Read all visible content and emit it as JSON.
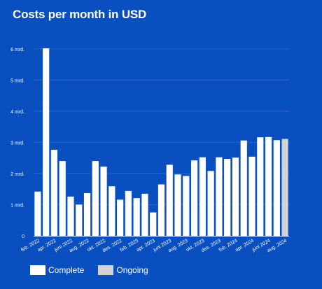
{
  "chart_data": {
    "type": "bar",
    "title": "Costs per month in USD",
    "xlabel": "",
    "ylabel": "",
    "ylim": [
      0,
      6400000000
    ],
    "yticks": [
      {
        "value": 0,
        "label": "0"
      },
      {
        "value": 1000000000,
        "label": "1 mrd."
      },
      {
        "value": 2000000000,
        "label": "2 mrd."
      },
      {
        "value": 3000000000,
        "label": "3 mrd."
      },
      {
        "value": 4000000000,
        "label": "4 mrd."
      },
      {
        "value": 5000000000,
        "label": "5 mrd."
      },
      {
        "value": 6000000000,
        "label": "6 mrd."
      }
    ],
    "grid": true,
    "categories": [
      "feb. 2022",
      "mar. 2022",
      "apr. 2022",
      "mai 2022",
      "juni 2022",
      "juli 2022",
      "aug. 2022",
      "sep. 2022",
      "okt. 2022",
      "nov. 2022",
      "des. 2022",
      "jan. 2023",
      "feb. 2023",
      "mar. 2023",
      "apr. 2023",
      "mai 2023",
      "juni 2023",
      "juli 2023",
      "aug. 2023",
      "sep. 2023",
      "okt. 2023",
      "nov. 2023",
      "des. 2023",
      "jan. 2024",
      "feb. 2024",
      "mar. 2024",
      "apr. 2024",
      "mai 2024",
      "juni 2024",
      "juli 2024",
      "aug. 2024"
    ],
    "xtick_labels": [
      "feb. 2022",
      "",
      "apr. 2022",
      "",
      "juni 2022",
      "",
      "aug. 2022",
      "",
      "okt. 2022",
      "",
      "des. 2022",
      "",
      "feb. 2023",
      "",
      "apr. 2023",
      "",
      "juni 2023",
      "",
      "aug. 2023",
      "",
      "okt. 2023",
      "",
      "des. 2023",
      "",
      "feb. 2024",
      "",
      "apr. 2024",
      "",
      "juni 2024",
      "",
      "aug. 2024"
    ],
    "values": [
      1420000000,
      6020000000,
      2760000000,
      2400000000,
      1260000000,
      1000000000,
      1370000000,
      2400000000,
      2220000000,
      1590000000,
      1160000000,
      1440000000,
      1210000000,
      1350000000,
      750000000,
      1650000000,
      2280000000,
      1970000000,
      1920000000,
      2420000000,
      2520000000,
      2080000000,
      2520000000,
      2470000000,
      2510000000,
      3060000000,
      2540000000,
      3160000000,
      3170000000,
      3070000000,
      3110000000
    ],
    "status": [
      "Complete",
      "Complete",
      "Complete",
      "Complete",
      "Complete",
      "Complete",
      "Complete",
      "Complete",
      "Complete",
      "Complete",
      "Complete",
      "Complete",
      "Complete",
      "Complete",
      "Complete",
      "Complete",
      "Complete",
      "Complete",
      "Complete",
      "Complete",
      "Complete",
      "Complete",
      "Complete",
      "Complete",
      "Complete",
      "Complete",
      "Complete",
      "Complete",
      "Complete",
      "Complete",
      "Ongoing"
    ],
    "legend": {
      "placement": "bottom-left",
      "entries": [
        {
          "name": "Complete",
          "color": "#ffffff"
        },
        {
          "name": "Ongoing",
          "color": "#d3d3d3"
        }
      ]
    },
    "colors": {
      "background": "#0a4fbf",
      "complete": "#ffffff",
      "ongoing": "#d3d3d3",
      "grid": "#2a66c9",
      "axis": "#ffffff"
    }
  }
}
